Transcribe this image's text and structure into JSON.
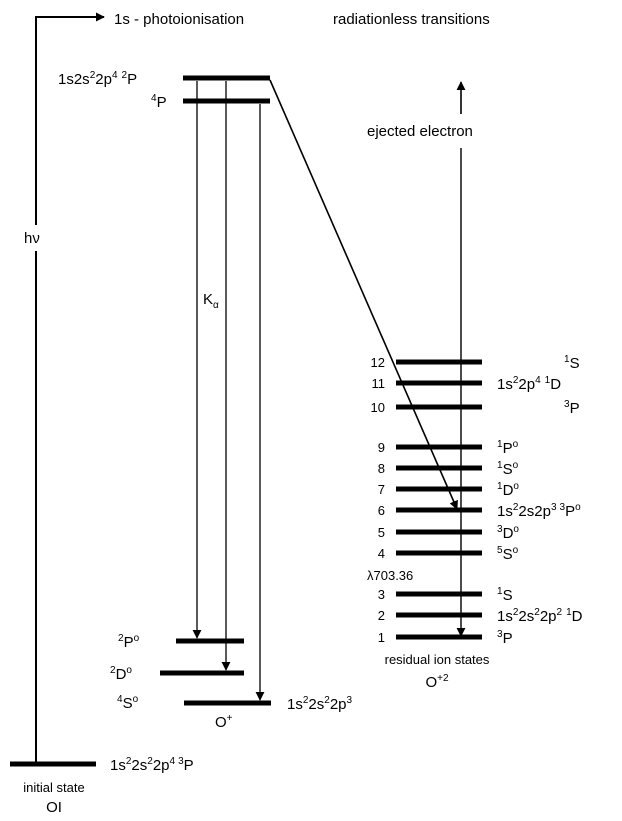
{
  "header": {
    "photoionisation": "1s - photoionisation",
    "radiationless": "radiationless transitions"
  },
  "excitation_label": {
    "h": "h",
    "nu": "ν"
  },
  "k_alpha": {
    "k": "K",
    "alpha": "α"
  },
  "ejected_electron": "ejected electron",
  "o_plus_states": {
    "upper_config": {
      "c1": "1s2s",
      "e1": "2",
      "c2": "2p",
      "e2": "4",
      "pre": "2",
      "term": "P"
    },
    "upper_quartet": {
      "pre": "4",
      "term": "P"
    },
    "final_terms": [
      {
        "pre": "2",
        "term": "P",
        "post": "o"
      },
      {
        "pre": "2",
        "term": "D",
        "post": "o"
      },
      {
        "pre": "4",
        "term": "S",
        "post": "o"
      }
    ],
    "ground_config": {
      "c1": "1s",
      "e1": "2",
      "c2": "2s",
      "e2": "2",
      "c3": "2p",
      "e3": "3"
    },
    "ion_label": {
      "base": "O",
      "charge": "+"
    }
  },
  "initial_state": {
    "config": {
      "c1": "1s",
      "e1": "2",
      "c2": "2s",
      "e2": "2",
      "c3": "2p",
      "e3": "4",
      "pre": "3",
      "term": "P"
    },
    "label_line1": "initial state",
    "label_line2": "OI"
  },
  "residual_ion": {
    "levels": [
      {
        "number": "12",
        "pre": "1",
        "term": "S",
        "post": ""
      },
      {
        "number": "11",
        "pre": "1",
        "term": "D",
        "post": ""
      },
      {
        "number": "10",
        "pre": "3",
        "term": "P",
        "post": ""
      },
      {
        "number": "9",
        "pre": "1",
        "term": "P",
        "post": "o"
      },
      {
        "number": "8",
        "pre": "1",
        "term": "S",
        "post": "o"
      },
      {
        "number": "7",
        "pre": "1",
        "term": "D",
        "post": "o"
      },
      {
        "number": "6",
        "pre": "3",
        "term": "P",
        "post": "o"
      },
      {
        "number": "5",
        "pre": "3",
        "term": "D",
        "post": "o"
      },
      {
        "number": "4",
        "pre": "5",
        "term": "S",
        "post": "o"
      },
      {
        "number": "3",
        "pre": "1",
        "term": "S",
        "post": ""
      },
      {
        "number": "2",
        "pre": "1",
        "term": "D",
        "post": ""
      },
      {
        "number": "1",
        "pre": "3",
        "term": "P",
        "post": ""
      }
    ],
    "config_2p4": {
      "c1": "1s",
      "e1": "2",
      "c2": "2p",
      "e2": "4"
    },
    "config_2s2p3": {
      "c1": "1s",
      "e1": "2",
      "c2": "2s2p",
      "e2": "3"
    },
    "config_2s2_2p2": {
      "c1": "1s",
      "e1": "2",
      "c2": "2s",
      "e2": "2",
      "c3": "2p",
      "e3": "2"
    },
    "wavelength": {
      "symbol": "λ",
      "value": "703.36"
    },
    "caption": "residual ion states",
    "ion_label": {
      "base": "O",
      "charge": "+2"
    }
  }
}
